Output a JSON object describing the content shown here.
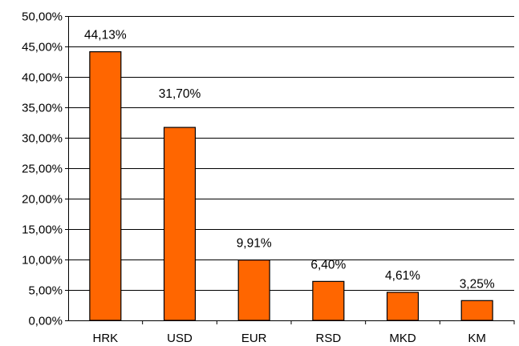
{
  "chart_data": {
    "type": "bar",
    "categories": [
      "HRK",
      "USD",
      "EUR",
      "RSD",
      "MKD",
      "KM"
    ],
    "values": [
      44.13,
      31.7,
      9.91,
      6.4,
      4.61,
      3.25
    ],
    "data_labels": [
      "44,13%",
      "31,70%",
      "9,91%",
      "6,40%",
      "4,61%",
      "3,25%"
    ],
    "title": "",
    "xlabel": "",
    "ylabel": "",
    "ylim": [
      0,
      50
    ],
    "yticks": [
      0,
      5,
      10,
      15,
      20,
      25,
      30,
      35,
      40,
      45,
      50
    ],
    "ytick_labels": [
      "0,00%",
      "5,00%",
      "10,00%",
      "15,00%",
      "20,00%",
      "25,00%",
      "30,00%",
      "35,00%",
      "40,00%",
      "45,00%",
      "50,00%"
    ],
    "grid": true,
    "legend": "none",
    "bar_color": "#FF6600",
    "bar_edge_color": "#000000"
  }
}
